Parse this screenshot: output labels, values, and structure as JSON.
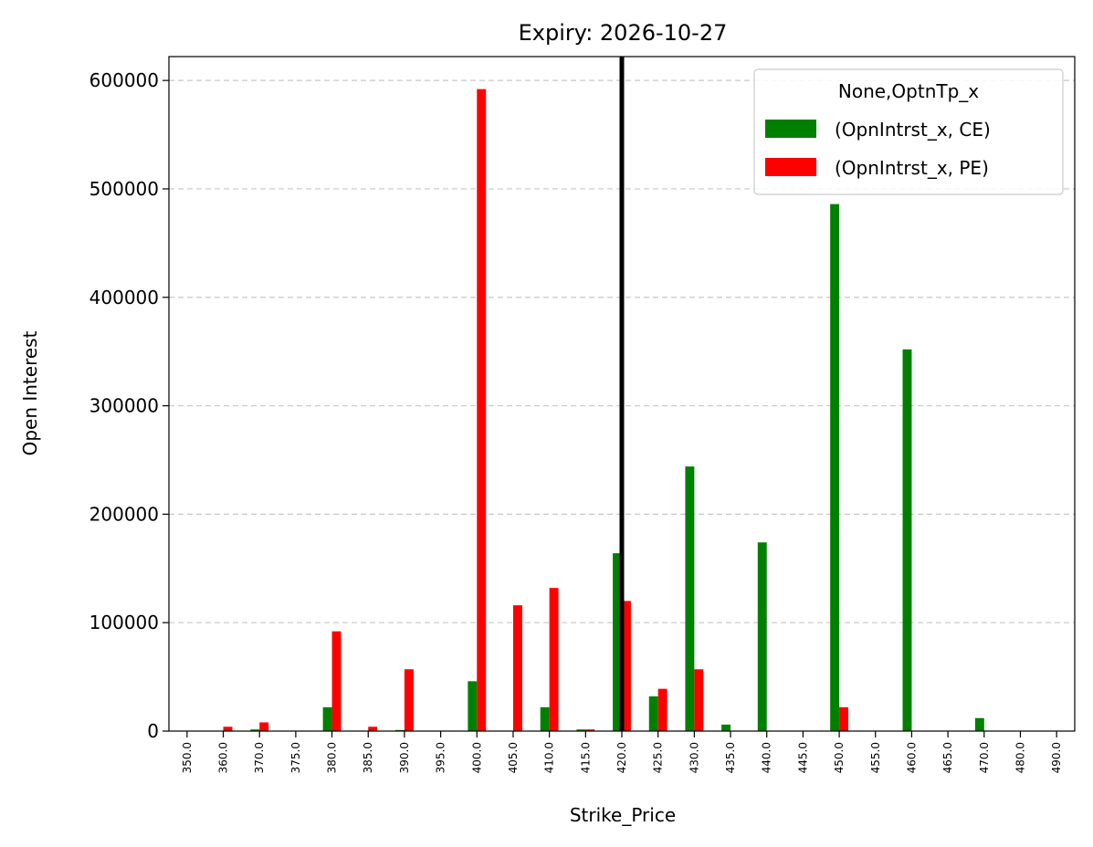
{
  "chart_data": {
    "type": "bar",
    "title": "Expiry: 2026-10-27",
    "xlabel": "Strike_Price",
    "ylabel": "Open Interest",
    "categories": [
      "350.0",
      "360.0",
      "370.0",
      "375.0",
      "380.0",
      "385.0",
      "390.0",
      "395.0",
      "400.0",
      "405.0",
      "410.0",
      "415.0",
      "420.0",
      "425.0",
      "430.0",
      "435.0",
      "440.0",
      "445.0",
      "450.0",
      "455.0",
      "460.0",
      "465.0",
      "470.0",
      "480.0",
      "490.0"
    ],
    "series": [
      {
        "name": "(OpnIntrst_x, CE)",
        "color": "#008000",
        "values": [
          0,
          0,
          1500,
          0,
          22000,
          0,
          1000,
          0,
          46000,
          0,
          22000,
          1500,
          164000,
          32000,
          244000,
          6000,
          174000,
          0,
          486000,
          0,
          352000,
          0,
          12000,
          0,
          0
        ]
      },
      {
        "name": "(OpnIntrst_x, PE)",
        "color": "#ff0000",
        "values": [
          0,
          4000,
          8000,
          0,
          92000,
          4000,
          57000,
          0,
          592000,
          116000,
          132000,
          1500,
          120000,
          39000,
          57000,
          0,
          0,
          0,
          22000,
          0,
          0,
          0,
          0,
          0,
          0
        ]
      }
    ],
    "ylim": [
      0,
      622000
    ],
    "yticks": [
      0,
      100000,
      200000,
      300000,
      400000,
      500000,
      600000
    ],
    "ytick_labels": [
      "0",
      "100000",
      "200000",
      "300000",
      "400000",
      "500000",
      "600000"
    ],
    "grid": "y-dashed",
    "vline_category": "420.0",
    "vline_color": "#000000",
    "legend": {
      "title": "None,OptnTp_x",
      "placement": "top-right"
    }
  }
}
